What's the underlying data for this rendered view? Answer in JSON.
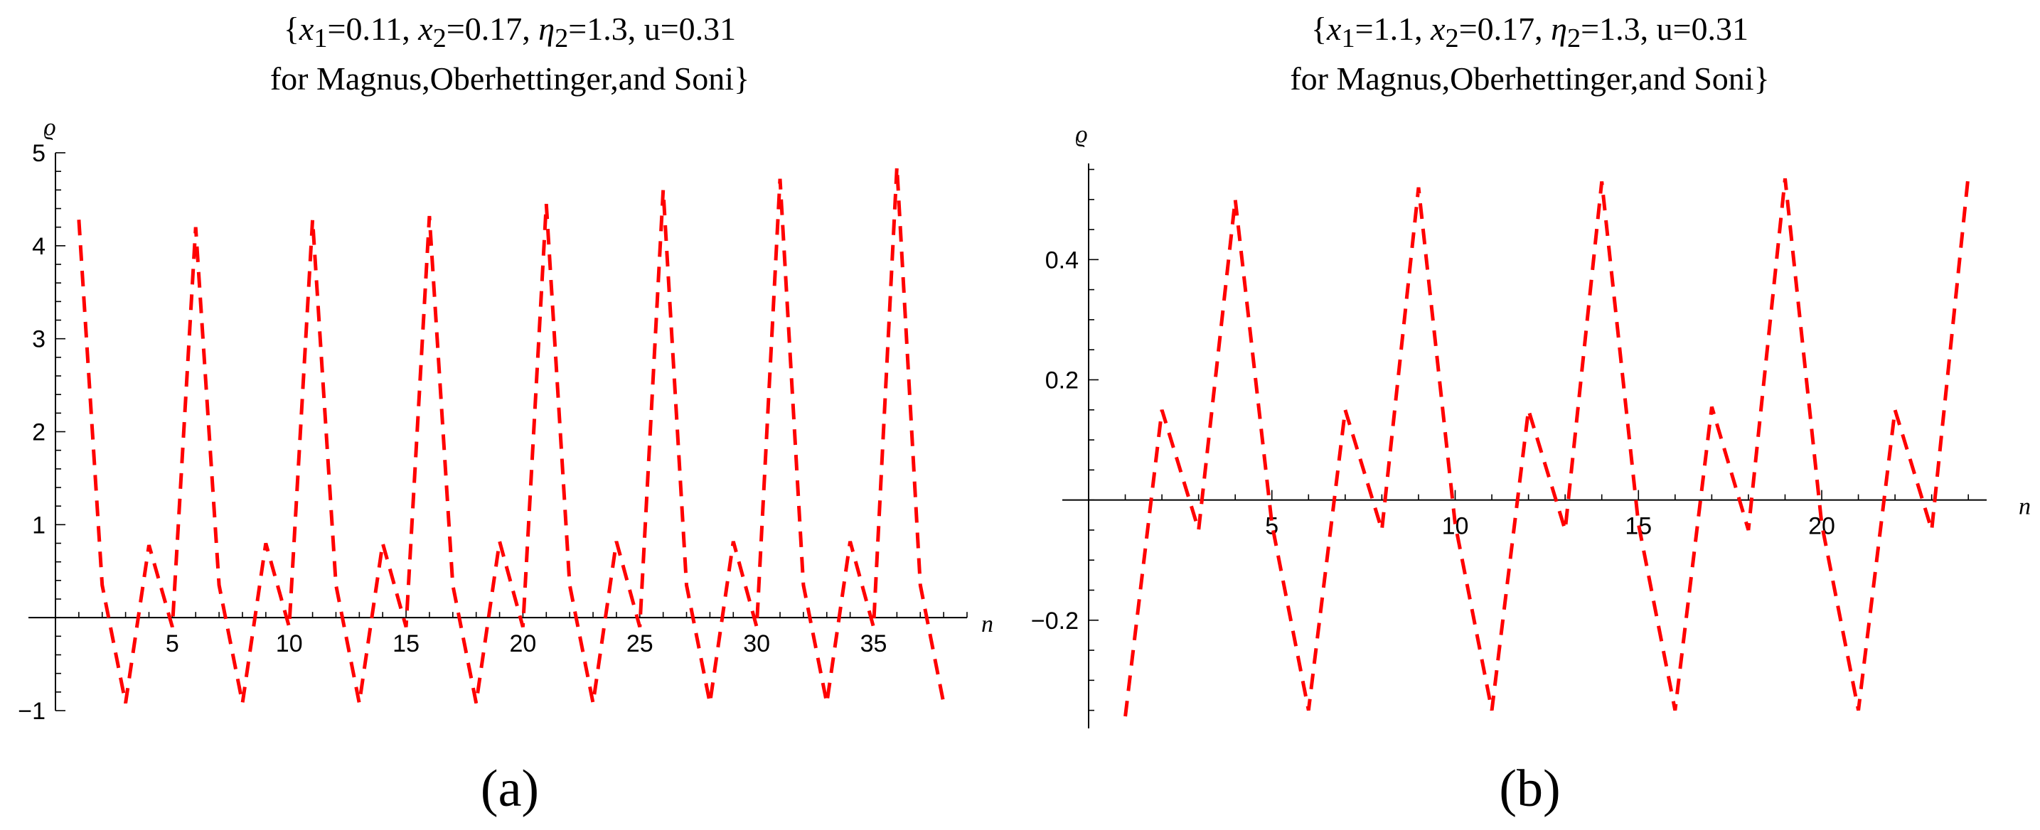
{
  "chart_data": [
    {
      "type": "line",
      "panel_label": "(a)",
      "title_line1_prefix": "{",
      "title_line1_rest": "=0.11, ",
      "title_line1_x2": "=0.17, ",
      "title_line1_eta": "=1.3, u=0.31",
      "title_line2": "for Magnus,Oberhettinger,and Soni}",
      "x1_value": "0.11",
      "xlabel": "n",
      "ylabel": "ϱ",
      "xlim": [
        0,
        39
      ],
      "ylim": [
        -1,
        5
      ],
      "x_ticks": [
        5,
        10,
        15,
        20,
        25,
        30,
        35
      ],
      "x_tick_labels": [
        "5",
        "10",
        "15",
        "20",
        "25",
        "30",
        "35"
      ],
      "y_ticks": [
        -1,
        1,
        2,
        3,
        4,
        5
      ],
      "y_tick_labels": [
        "−1",
        "1",
        "2",
        "3",
        "4",
        "5"
      ],
      "line_style": "dashed",
      "color": "#ff0000",
      "series": [
        {
          "x": [
            1,
            2,
            3,
            4,
            5,
            6,
            7,
            8,
            9,
            10,
            11,
            12,
            13,
            14,
            15,
            16,
            17,
            18,
            19,
            20,
            21,
            22,
            23,
            24,
            25,
            26,
            27,
            28,
            29,
            30,
            31,
            32,
            33,
            34,
            35,
            36,
            37,
            38
          ],
          "values": [
            4.28,
            0.35,
            -0.92,
            0.78,
            -0.1,
            4.2,
            0.35,
            -0.92,
            0.8,
            -0.1,
            4.28,
            0.35,
            -0.92,
            0.8,
            -0.1,
            4.32,
            0.35,
            -0.92,
            0.82,
            -0.1,
            4.45,
            0.35,
            -0.92,
            0.82,
            -0.1,
            4.6,
            0.35,
            -0.92,
            0.82,
            -0.1,
            4.72,
            0.35,
            -0.92,
            0.82,
            -0.1,
            4.85,
            0.35,
            -0.92
          ]
        }
      ]
    },
    {
      "type": "line",
      "panel_label": "(b)",
      "title_line1_prefix": "{",
      "title_line1_rest": "=1.1, ",
      "title_line1_x2": "=0.17, ",
      "title_line1_eta": "=1.3, u=0.31",
      "title_line2": "for Magnus,Oberhettinger,and Soni}",
      "xlabel": "n",
      "ylabel": "ϱ",
      "xlim": [
        0,
        24.5
      ],
      "ylim": [
        -0.38,
        0.56
      ],
      "x_ticks": [
        5,
        10,
        15,
        20
      ],
      "x_tick_labels": [
        "5",
        "10",
        "15",
        "20"
      ],
      "y_ticks": [
        -0.2,
        0.2,
        0.4
      ],
      "y_tick_labels": [
        "−0.2",
        "0.2",
        "0.4"
      ],
      "line_style": "dashed",
      "color": "#ff0000",
      "series": [
        {
          "x": [
            1,
            2,
            3,
            4,
            5,
            6,
            7,
            8,
            9,
            10,
            11,
            12,
            13,
            14,
            15,
            16,
            17,
            18,
            19,
            20,
            21,
            22,
            23,
            24
          ],
          "values": [
            -0.36,
            0.15,
            -0.05,
            0.5,
            -0.04,
            -0.35,
            0.15,
            -0.05,
            0.52,
            -0.04,
            -0.35,
            0.15,
            -0.05,
            0.53,
            -0.04,
            -0.35,
            0.155,
            -0.05,
            0.535,
            -0.04,
            -0.35,
            0.15,
            -0.05,
            0.54
          ]
        }
      ]
    }
  ],
  "subscripts": {
    "x1": "1",
    "x2": "2",
    "eta2": "2"
  },
  "symbols": {
    "x": "x",
    "eta": "η"
  }
}
